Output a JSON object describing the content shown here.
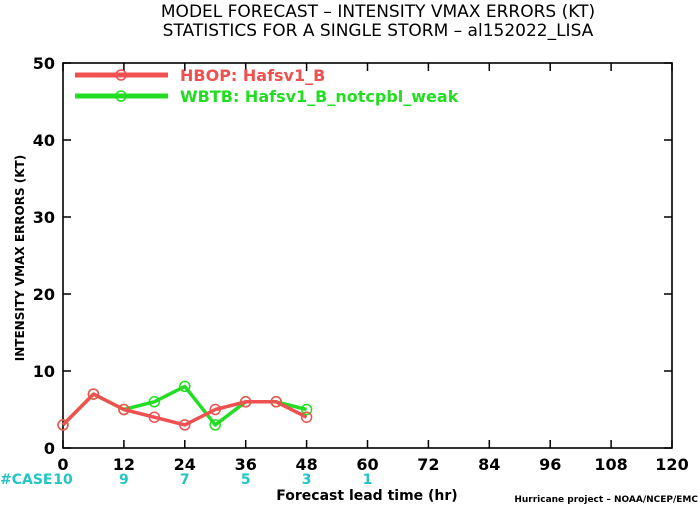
{
  "title_line1": "MODEL FORECAST – INTENSITY VMAX ERRORS (KT)",
  "title_line2": "STATISTICS FOR A SINGLE STORM – al152022_LISA",
  "credit": "Hurricane project – NOAA/NCEP/EMC",
  "case_label": "#CASE",
  "case_color": "#22c4c4",
  "case_counts": [
    {
      "x": 0,
      "n": "10"
    },
    {
      "x": 12,
      "n": "9"
    },
    {
      "x": 24,
      "n": "7"
    },
    {
      "x": 36,
      "n": "5"
    },
    {
      "x": 48,
      "n": "3"
    },
    {
      "x": 60,
      "n": "1"
    }
  ],
  "chart_data": {
    "type": "line",
    "title": "MODEL FORECAST – INTENSITY VMAX ERRORS (KT)",
    "subtitle": "STATISTICS FOR A SINGLE STORM – al152022_LISA",
    "xlabel": "Forecast lead time (hr)",
    "ylabel": "INTENSITY VMAX ERRORS (KT)",
    "xlim": [
      0,
      120
    ],
    "ylim": [
      0,
      50
    ],
    "xticks": [
      0,
      12,
      24,
      36,
      48,
      60,
      72,
      84,
      96,
      108,
      120
    ],
    "yticks": [
      0,
      10,
      20,
      30,
      40,
      50
    ],
    "grid": false,
    "legend_position": "top-left",
    "series": [
      {
        "name": "HBOP: Hafsv1_B",
        "color": "#f05050",
        "x": [
          0,
          6,
          12,
          18,
          24,
          30,
          36,
          42,
          48
        ],
        "y": [
          3,
          7,
          5,
          4,
          3,
          5,
          6,
          6,
          4
        ]
      },
      {
        "name": "WBTB: Hafsv1_B_notcpbl_weak",
        "color": "#22dd22",
        "x": [
          0,
          6,
          12,
          18,
          24,
          30,
          36,
          42,
          48
        ],
        "y": [
          3,
          7,
          5,
          6,
          8,
          3,
          6,
          6,
          5
        ]
      }
    ]
  }
}
